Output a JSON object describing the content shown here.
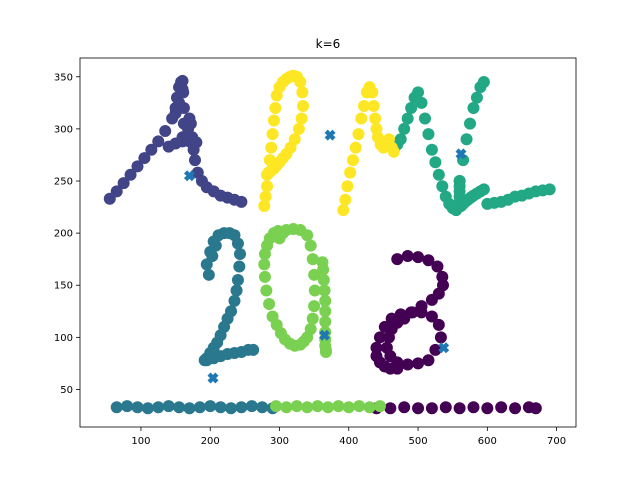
{
  "chart_data": {
    "type": "scatter",
    "title": "k=6",
    "xlabel": "",
    "ylabel": "",
    "xlim": [
      12,
      728
    ],
    "ylim": [
      14,
      368
    ],
    "xticks": [
      100,
      200,
      300,
      400,
      500,
      600,
      700
    ],
    "yticks": [
      50,
      100,
      150,
      200,
      250,
      300,
      350
    ],
    "grid": false,
    "legend": "none",
    "colors": {
      "c0": "#440154",
      "c1": "#414487",
      "c2": "#2a788e",
      "c3": "#22a884",
      "c4": "#7ad151",
      "c5": "#fde725",
      "center": "#1f77b4"
    },
    "series": [
      {
        "cluster": 0,
        "color": "#440154",
        "description_points": "digit 8 and right part of baseline",
        "x": [
          440,
          460,
          480,
          500,
          520,
          540,
          560,
          580,
          600,
          620,
          640,
          660,
          670,
          470,
          485,
          500,
          515,
          528,
          535,
          536,
          530,
          520,
          505,
          492,
          480,
          470,
          462,
          458,
          455,
          460,
          470,
          485,
          500,
          515,
          525,
          533,
          530,
          520,
          505,
          490,
          475,
          462,
          452,
          445,
          440,
          440,
          445,
          452,
          460,
          470
        ],
        "y": [
          32,
          32,
          33,
          32,
          32,
          33,
          32,
          33,
          32,
          33,
          32,
          33,
          32,
          175,
          178,
          177,
          174,
          168,
          158,
          150,
          142,
          136,
          130,
          124,
          118,
          114,
          108,
          100,
          90,
          82,
          76,
          74,
          75,
          78,
          88,
          100,
          112,
          120,
          124,
          124,
          122,
          118,
          110,
          100,
          90,
          82,
          76,
          72,
          70,
          70
        ]
      },
      {
        "cluster": 1,
        "color": "#414487",
        "description_points": "letter A",
        "x": [
          55,
          65,
          75,
          85,
          95,
          105,
          115,
          125,
          135,
          145,
          150,
          152,
          155,
          158,
          160,
          161,
          162,
          162,
          160,
          165,
          168,
          170,
          172,
          174,
          176,
          178,
          182,
          188,
          195,
          205,
          215,
          225,
          235,
          245,
          140,
          150,
          160,
          170,
          180,
          150,
          155,
          160
        ],
        "y": [
          233,
          240,
          248,
          256,
          264,
          272,
          280,
          288,
          298,
          310,
          320,
          330,
          340,
          345,
          346,
          335,
          320,
          305,
          292,
          290,
          300,
          310,
          305,
          292,
          280,
          270,
          258,
          250,
          244,
          240,
          236,
          234,
          232,
          230,
          283,
          286,
          288,
          288,
          287,
          315,
          325,
          338
        ]
      },
      {
        "cluster": 2,
        "color": "#2a788e",
        "description_points": "digit 2 and left part of baseline",
        "x": [
          195,
          200,
          205,
          212,
          220,
          228,
          235,
          240,
          243,
          242,
          240,
          238,
          235,
          230,
          225,
          220,
          215,
          210,
          205,
          200,
          195,
          192,
          195,
          205,
          215,
          225,
          235,
          245,
          255,
          262,
          198,
          203,
          208,
          65,
          80,
          95,
          110,
          125,
          140,
          155,
          170,
          185,
          200,
          215,
          230,
          245,
          260,
          275,
          290
        ],
        "y": [
          170,
          182,
          192,
          198,
          200,
          200,
          198,
          190,
          180,
          168,
          155,
          145,
          135,
          125,
          118,
          110,
          102,
          95,
          90,
          85,
          80,
          78,
          78,
          80,
          82,
          84,
          85,
          86,
          88,
          88,
          160,
          178,
          188,
          33,
          34,
          33,
          32,
          33,
          34,
          33,
          32,
          33,
          34,
          33,
          32,
          33,
          34,
          33,
          32
        ]
      },
      {
        "cluster": 3,
        "color": "#22a884",
        "description_points": "right of M and letter L",
        "x": [
          465,
          470,
          475,
          480,
          485,
          490,
          495,
          500,
          505,
          510,
          515,
          520,
          525,
          530,
          535,
          540,
          545,
          550,
          555,
          560,
          565,
          570,
          575,
          580,
          585,
          590,
          595,
          560,
          560,
          560,
          560,
          560,
          600,
          610,
          620,
          630,
          640,
          650,
          660,
          670,
          680,
          690,
          562,
          565,
          568,
          572,
          576,
          580,
          585,
          590,
          595
        ],
        "y": [
          280,
          285,
          290,
          300,
          310,
          320,
          330,
          335,
          325,
          310,
          295,
          280,
          268,
          256,
          245,
          235,
          228,
          224,
          222,
          250,
          270,
          290,
          305,
          320,
          330,
          340,
          345,
          230,
          235,
          240,
          245,
          250,
          228,
          229,
          230,
          232,
          235,
          236,
          238,
          240,
          241,
          242,
          226,
          228,
          230,
          232,
          234,
          236,
          238,
          240,
          242
        ]
      },
      {
        "cluster": 4,
        "color": "#7ad151",
        "description_points": "digits 0 and 1 and middle of baseline",
        "x": [
          300,
          305,
          310,
          320,
          330,
          340,
          345,
          348,
          350,
          351,
          350,
          348,
          345,
          340,
          335,
          330,
          322,
          315,
          308,
          302,
          296,
          290,
          285,
          281,
          279,
          278,
          279,
          282,
          286,
          292,
          298,
          362,
          363,
          364,
          365,
          366,
          366,
          366,
          366,
          366,
          366,
          367,
          367,
          295,
          310,
          325,
          340,
          355,
          370,
          385,
          400,
          415,
          430,
          445
        ],
        "y": [
          195,
          200,
          203,
          204,
          203,
          198,
          188,
          175,
          160,
          145,
          130,
          118,
          108,
          100,
          96,
          93,
          92,
          94,
          98,
          104,
          112,
          120,
          132,
          145,
          158,
          170,
          180,
          188,
          195,
          200,
          202,
          172,
          165,
          155,
          145,
          135,
          125,
          115,
          105,
          98,
          92,
          88,
          86,
          34,
          33,
          34,
          33,
          34,
          33,
          34,
          33,
          34,
          33,
          34
        ]
      },
      {
        "cluster": 5,
        "color": "#fde725",
        "description_points": "letter P and left of M",
        "x": [
          278,
          280,
          282,
          284,
          286,
          288,
          290,
          292,
          294,
          296,
          300,
          305,
          310,
          315,
          320,
          325,
          330,
          333,
          334,
          332,
          328,
          322,
          316,
          310,
          305,
          300,
          296,
          292,
          288,
          285,
          282,
          392,
          395,
          398,
          402,
          406,
          410,
          414,
          418,
          422,
          426,
          430,
          434,
          436,
          438,
          440,
          442,
          446,
          450,
          454,
          458,
          462,
          465
        ],
        "y": [
          226,
          235,
          245,
          258,
          270,
          282,
          295,
          308,
          320,
          332,
          340,
          345,
          348,
          350,
          351,
          350,
          345,
          335,
          322,
          310,
          300,
          290,
          282,
          276,
          272,
          268,
          265,
          262,
          260,
          258,
          256,
          222,
          232,
          245,
          258,
          270,
          282,
          295,
          310,
          322,
          335,
          340,
          335,
          322,
          310,
          300,
          292,
          285,
          282,
          284,
          290,
          282,
          278
        ]
      }
    ],
    "centers": {
      "color": "#1f77b4",
      "marker": "X",
      "x": [
        170,
        373,
        562,
        204,
        365,
        537
      ],
      "y": [
        255,
        294,
        276,
        61,
        102,
        90
      ]
    }
  }
}
